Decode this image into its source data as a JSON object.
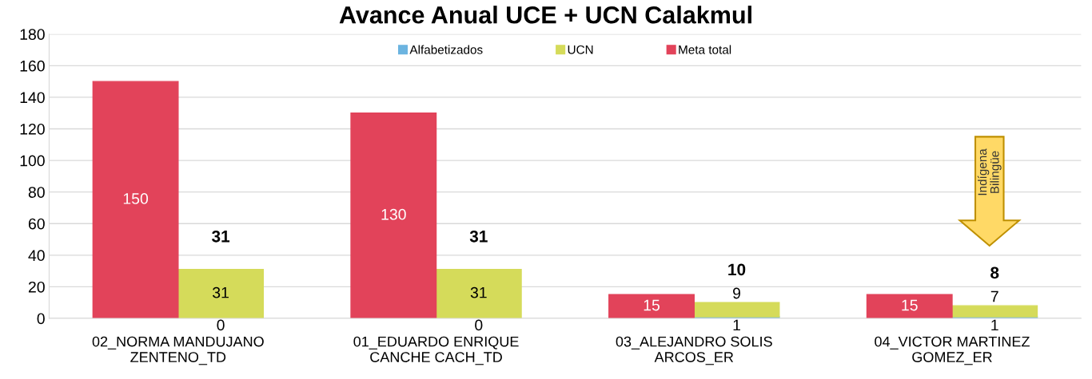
{
  "chart_data": {
    "type": "bar",
    "title": "Avance Anual UCE + UCN Calakmul",
    "categories": [
      "02_NORMA MANDUJANO\nZENTENO_TD",
      "01_EDUARDO ENRIQUE\nCANCHE CACH_TD",
      "03_ALEJANDRO SOLIS\nARCOS_ER",
      "04_VICTOR MARTINEZ\nGOMEZ_ER"
    ],
    "series": [
      {
        "name": "Alfabetizados",
        "color": "#6cb4e0",
        "values": [
          0,
          0,
          1,
          1
        ]
      },
      {
        "name": "UCN",
        "color": "#d5db5a",
        "values": [
          31,
          31,
          9,
          7
        ],
        "base": [
          0,
          0,
          1,
          1
        ]
      },
      {
        "name": "Meta total",
        "color": "#e2435a",
        "values": [
          150,
          130,
          15,
          15
        ]
      }
    ],
    "data_labels": true,
    "ylim": [
      0,
      180
    ],
    "yticks": [
      0,
      20,
      40,
      60,
      80,
      100,
      120,
      140,
      160,
      180
    ],
    "grid": "y",
    "legend": "top",
    "annotations": [
      {
        "text": "31",
        "x": "02_NORMA MANDUJANO\nZENTENO_TD",
        "y": 31
      },
      {
        "text": "31",
        "x": "01_EDUARDO ENRIQUE\nCANCHE CACH_TD",
        "y": 31
      },
      {
        "text": "10",
        "x": "03_ALEJANDRO SOLIS\nARCOS_ER",
        "y": 10
      },
      {
        "text": "8",
        "x": "04_VICTOR MARTINEZ\nGOMEZ_ER",
        "y": 8
      },
      "Indígena\nBilingüe"
    ]
  }
}
